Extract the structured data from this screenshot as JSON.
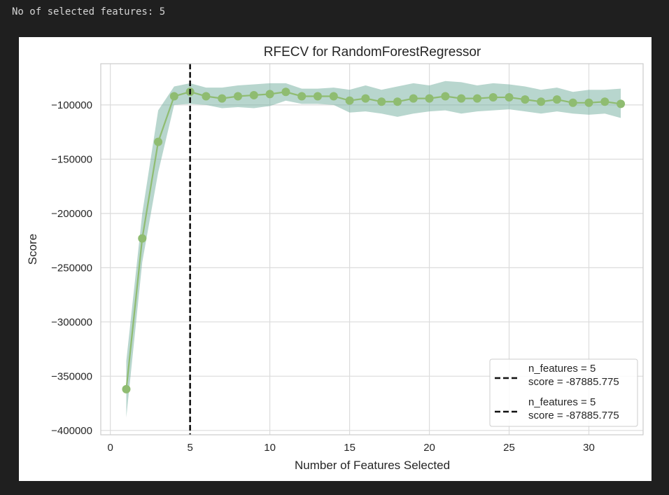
{
  "console": {
    "text": "No of selected features: 5"
  },
  "chart_data": {
    "type": "line",
    "title": "RFECV for RandomForestRegressor",
    "xlabel": "Number of Features Selected",
    "ylabel": "Score",
    "xlim": [
      -0.6,
      33.4
    ],
    "ylim": [
      -404000,
      -62000
    ],
    "xticks": [
      0,
      5,
      10,
      15,
      20,
      25,
      30
    ],
    "yticks": [
      -400000,
      -350000,
      -300000,
      -250000,
      -200000,
      -150000,
      -100000
    ],
    "ytick_labels": [
      "−400000",
      "−350000",
      "−300000",
      "−250000",
      "−200000",
      "−150000",
      "−100000"
    ],
    "grid": true,
    "x": [
      1,
      2,
      3,
      4,
      5,
      6,
      7,
      8,
      9,
      10,
      11,
      12,
      13,
      14,
      15,
      16,
      17,
      18,
      19,
      20,
      21,
      22,
      23,
      24,
      25,
      26,
      27,
      28,
      29,
      30,
      31,
      32
    ],
    "mean": [
      -362000,
      -223000,
      -134000,
      -92000,
      -87885.775,
      -92000,
      -94000,
      -92000,
      -91000,
      -90000,
      -88000,
      -92000,
      -92000,
      -92000,
      -96000,
      -94000,
      -97000,
      -97000,
      -94000,
      -94000,
      -92000,
      -94000,
      -94000,
      -93000,
      -93000,
      -95000,
      -97000,
      -95000,
      -98000,
      -98000,
      -97000,
      -99000
    ],
    "lower": [
      -388000,
      -245000,
      -162000,
      -100000,
      -99000,
      -100000,
      -103000,
      -102000,
      -103000,
      -101000,
      -96000,
      -99000,
      -99000,
      -100000,
      -107000,
      -106000,
      -108000,
      -111000,
      -108000,
      -106000,
      -105000,
      -108000,
      -106000,
      -105000,
      -104000,
      -106000,
      -108000,
      -106000,
      -108000,
      -109000,
      -108000,
      -112000
    ],
    "upper": [
      -336000,
      -200000,
      -105000,
      -83000,
      -80000,
      -84000,
      -84000,
      -82000,
      -81000,
      -80000,
      -80000,
      -85000,
      -85000,
      -84000,
      -86000,
      -82000,
      -86000,
      -83000,
      -80000,
      -82000,
      -78000,
      -79000,
      -82000,
      -80000,
      -81000,
      -83000,
      -86000,
      -84000,
      -88000,
      -86000,
      -86000,
      -85000
    ],
    "series_color": "#8fbc71",
    "band_color": "#72ad9e",
    "vline": {
      "x": 5,
      "color": "#111111"
    },
    "legend": {
      "position": "lower-right",
      "entries": [
        {
          "line1": "n_features = 5",
          "line2": "score = -87885.775"
        },
        {
          "line1": "n_features = 5",
          "line2": "score = -87885.775"
        }
      ]
    }
  }
}
